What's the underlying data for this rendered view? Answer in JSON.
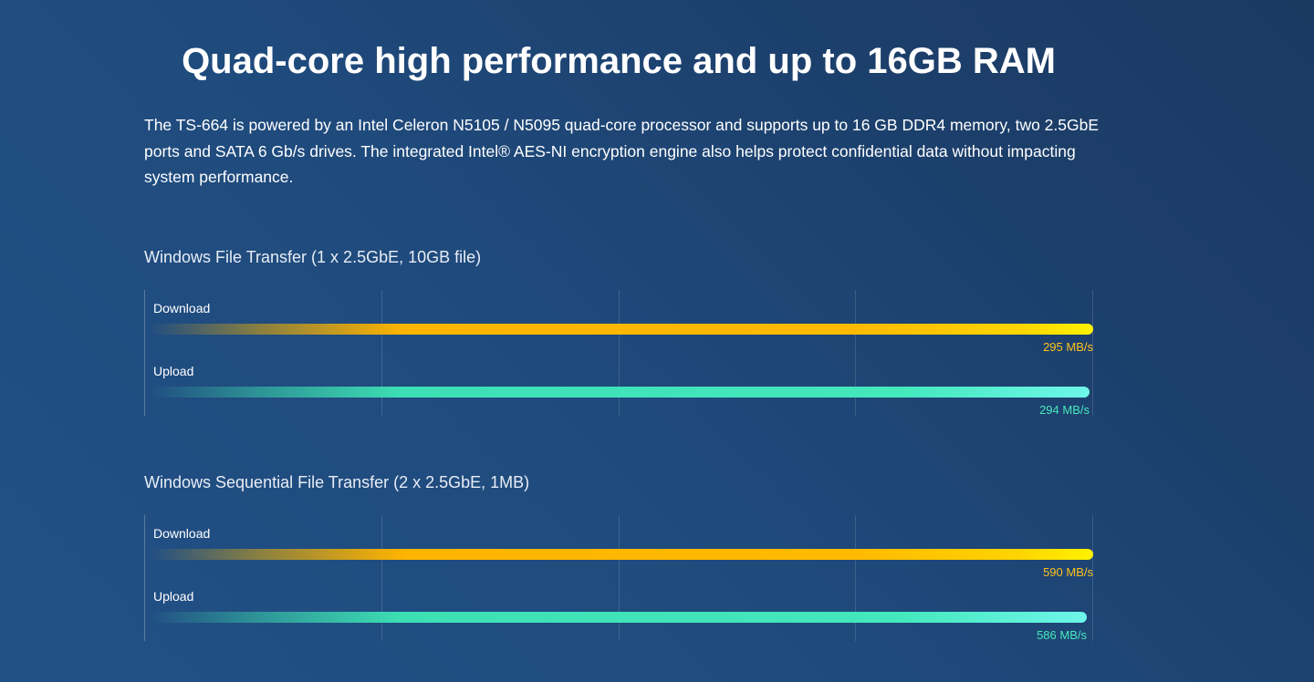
{
  "header": {
    "title": "Quad-core high performance and up to 16GB RAM",
    "description": "The TS-664 is powered by an Intel Celeron N5105 / N5095 quad-core processor and supports up to 16 GB DDR4 memory, two 2.5GbE ports and SATA 6 Gb/s drives. The integrated Intel® AES-NI encryption engine also helps protect confidential data without impacting system performance."
  },
  "colors": {
    "background": "#1f4a7c",
    "download": "#ffb400",
    "upload": "#3de0b4"
  },
  "chart_data": [
    {
      "type": "bar",
      "orientation": "horizontal",
      "title": "Windows File Transfer (1 x 2.5GbE, 10GB file)",
      "categories": [
        "Download",
        "Upload"
      ],
      "values": [
        295,
        294
      ],
      "value_labels": [
        "295 MB/s",
        "294 MB/s"
      ],
      "unit": "MB/s",
      "xlim": [
        0,
        295
      ],
      "grid": true
    },
    {
      "type": "bar",
      "orientation": "horizontal",
      "title": "Windows Sequential File Transfer (2 x 2.5GbE, 1MB)",
      "categories": [
        "Download",
        "Upload"
      ],
      "values": [
        590,
        586
      ],
      "value_labels": [
        "590 MB/s",
        "586 MB/s"
      ],
      "unit": "MB/s",
      "xlim": [
        0,
        590
      ],
      "grid": true
    }
  ]
}
